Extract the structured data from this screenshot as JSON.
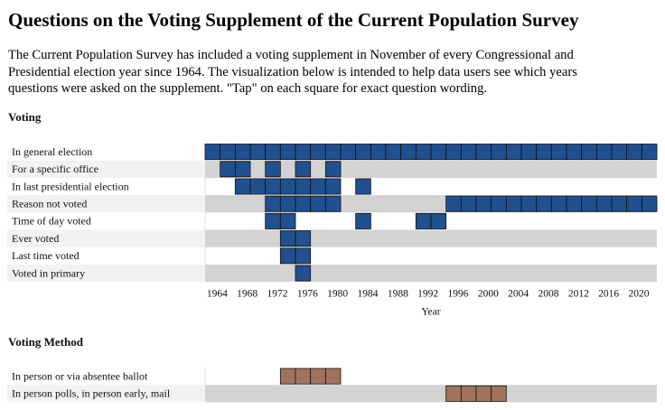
{
  "header": {
    "title": "Questions on the Voting Supplement of the Current Population Survey",
    "description": "The Current Population Survey has included a voting supplement in November of every Congressional and Presidential election year since 1964. The visualization below is intended to help data users see which years questions were asked on the supplement. \"Tap\" on each square for exact question wording."
  },
  "xlim": [
    1963,
    2023
  ],
  "sections": [
    {
      "title": "Voting",
      "color": "#21508f",
      "xticks": [
        1964,
        1968,
        1972,
        1976,
        1980,
        1984,
        1988,
        1992,
        1996,
        2000,
        2004,
        2008,
        2012,
        2016,
        2020
      ],
      "xlabel": "Year",
      "rows": [
        {
          "label": "In general election",
          "years": [
            1964,
            1966,
            1968,
            1970,
            1972,
            1974,
            1976,
            1978,
            1980,
            1982,
            1984,
            1986,
            1988,
            1990,
            1992,
            1994,
            1996,
            1998,
            2000,
            2002,
            2004,
            2006,
            2008,
            2010,
            2012,
            2014,
            2016,
            2018,
            2020,
            2022
          ]
        },
        {
          "label": "For a specific office",
          "years": [
            1966,
            1968,
            1972,
            1976,
            1980
          ]
        },
        {
          "label": "In last presidential election",
          "years": [
            1968,
            1970,
            1972,
            1974,
            1976,
            1978,
            1980,
            1984
          ]
        },
        {
          "label": "Reason not voted",
          "years": [
            1972,
            1974,
            1976,
            1978,
            1980,
            1996,
            1998,
            2000,
            2002,
            2004,
            2006,
            2008,
            2010,
            2012,
            2014,
            2016,
            2018,
            2020,
            2022
          ]
        },
        {
          "label": "Time of day voted",
          "years": [
            1972,
            1974,
            1984,
            1992,
            1994
          ]
        },
        {
          "label": "Ever voted",
          "years": [
            1974,
            1976
          ]
        },
        {
          "label": "Last time voted",
          "years": [
            1974,
            1976
          ]
        },
        {
          "label": "Voted in primary",
          "years": [
            1976
          ]
        }
      ]
    },
    {
      "title": "Voting Method",
      "color": "#a0735e",
      "rows": [
        {
          "label": "In person or via absentee ballot",
          "years": [
            1974,
            1976,
            1978,
            1980
          ]
        },
        {
          "label": "In person polls, in person early, mail",
          "years": [
            1996,
            1998,
            2000,
            2002
          ]
        }
      ]
    }
  ]
}
